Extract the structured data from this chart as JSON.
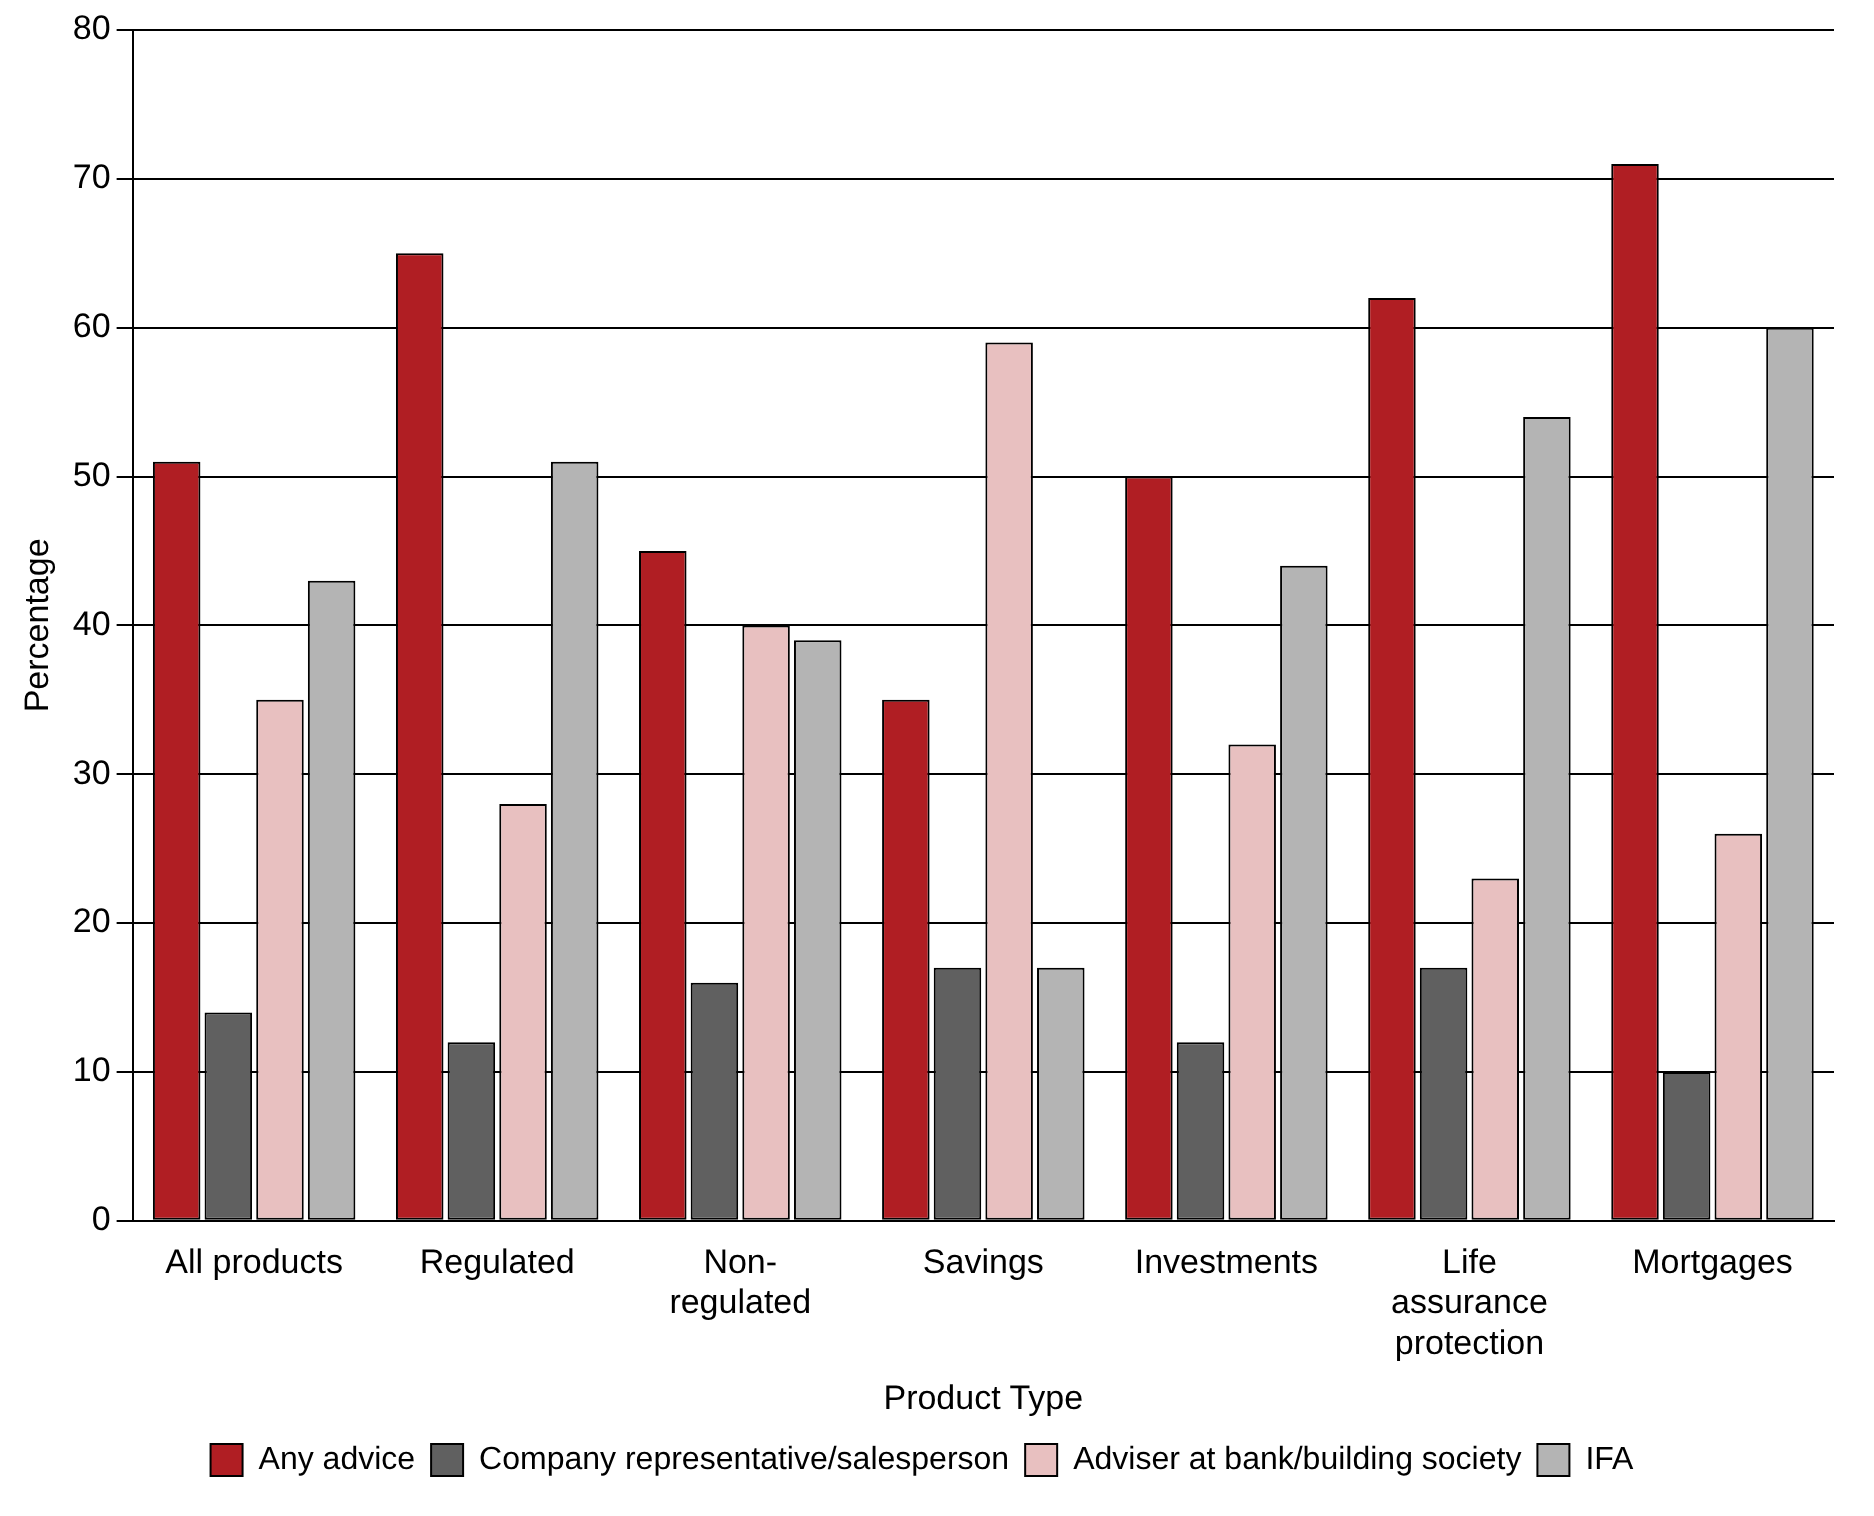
{
  "chart_data": {
    "type": "bar",
    "xlabel": "Product Type",
    "ylabel": "Percentage",
    "categories": [
      "All products",
      "Regulated",
      "Non-regulated",
      "Savings",
      "Investments",
      "Life assurance protection",
      "Mortgages"
    ],
    "series": [
      {
        "name": "Any advice",
        "color": "#b01e23",
        "values": [
          51,
          65,
          45,
          35,
          50,
          62,
          71
        ]
      },
      {
        "name": "Company representative/salesperson",
        "color": "#606060",
        "values": [
          14,
          12,
          16,
          17,
          12,
          17,
          10
        ]
      },
      {
        "name": "Adviser at bank/building society",
        "color": "#e8c0c0",
        "values": [
          35,
          28,
          40,
          59,
          32,
          23,
          26
        ]
      },
      {
        "name": "IFA",
        "color": "#b4b4b4",
        "values": [
          43,
          51,
          39,
          17,
          44,
          54,
          60
        ]
      }
    ],
    "ylim": [
      0,
      80
    ],
    "yticks": [
      0,
      10,
      20,
      30,
      40,
      50,
      60,
      70,
      80
    ],
    "grid": "y",
    "legend": "bottom"
  }
}
